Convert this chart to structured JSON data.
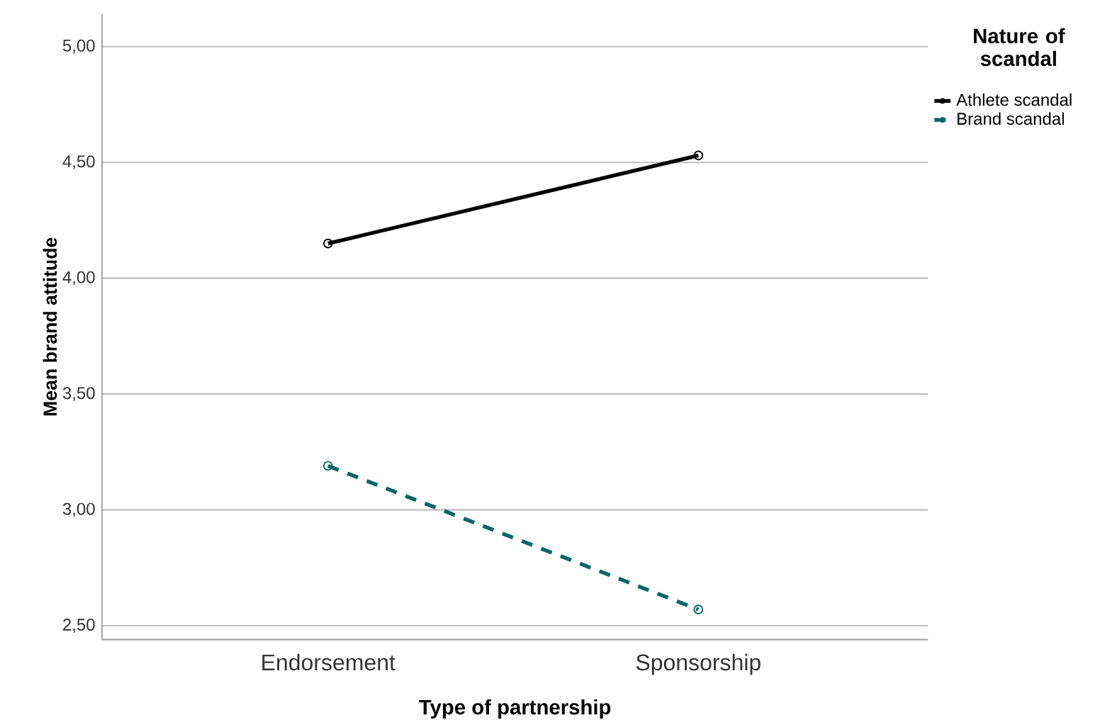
{
  "chart_data": {
    "type": "line",
    "xlabel": "Type of partnership",
    "ylabel": "Mean brand attitude",
    "legend_title": "Nature of scandal",
    "categories": [
      "Endorsement",
      "Sponsorship"
    ],
    "series": [
      {
        "name": "Athlete scandal",
        "color": "#000000",
        "values": [
          4.15,
          4.53
        ],
        "line_style": "solid"
      },
      {
        "name": "Brand scandal",
        "color": "#006666",
        "values": [
          3.19,
          2.57
        ],
        "line_style": "dashed"
      }
    ],
    "ylim": [
      2.44,
      5.14
    ],
    "yticks": [
      {
        "value": 2.5,
        "label": "2,50"
      },
      {
        "value": 3,
        "label": "3,00"
      },
      {
        "value": 3.5,
        "label": "3,50"
      },
      {
        "value": 4,
        "label": "4,00"
      },
      {
        "value": 4.5,
        "label": "4,50"
      },
      {
        "value": 5,
        "label": "5,00"
      }
    ],
    "grid": "y",
    "legend": "top right",
    "marker": "circle"
  }
}
